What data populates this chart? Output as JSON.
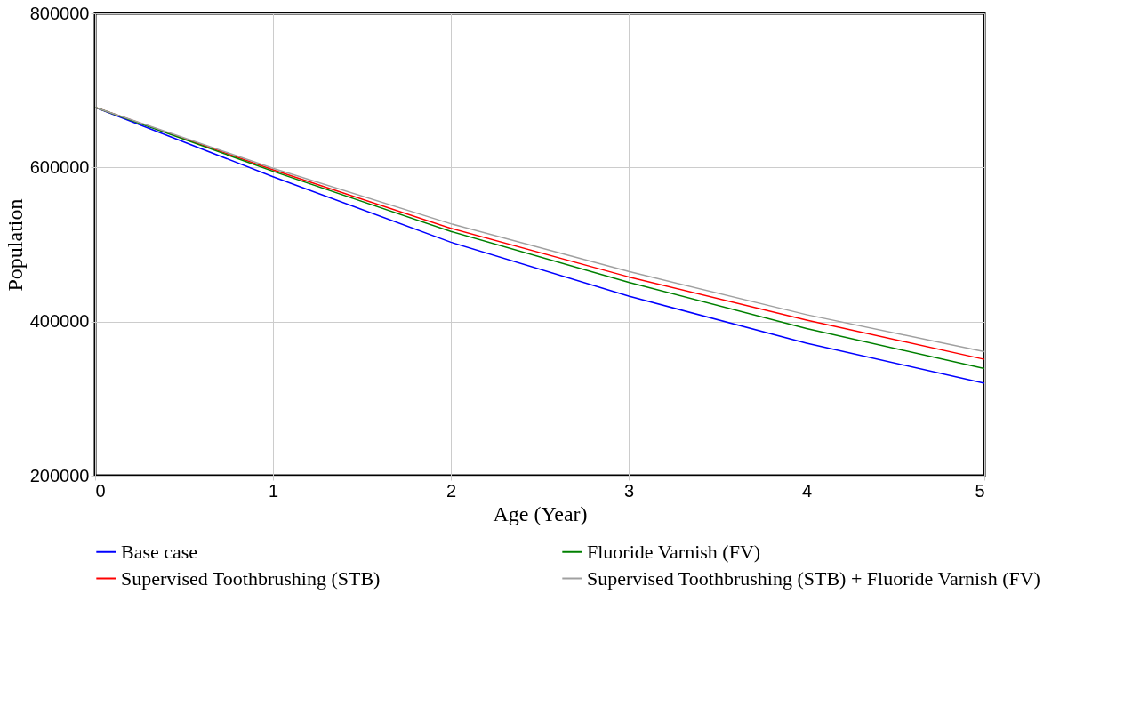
{
  "chart_data": {
    "type": "line",
    "xlabel": "Age (Year)",
    "ylabel": "Population",
    "x": [
      0,
      1,
      2,
      3,
      4,
      5
    ],
    "series": [
      {
        "name": "Base case",
        "color": "#0000ff",
        "values": [
          678000,
          588000,
          503000,
          433000,
          372000,
          320000
        ]
      },
      {
        "name": "Supervised Toothbrushing (STB)",
        "color": "#ff0000",
        "values": [
          678000,
          597000,
          521000,
          458000,
          402000,
          351000
        ]
      },
      {
        "name": "Fluoride Varnish (FV)",
        "color": "#008000",
        "values": [
          678000,
          595000,
          517000,
          451000,
          391000,
          339000
        ]
      },
      {
        "name": "Supervised Toothbrushing (STB) + Fluoride Varnish (FV)",
        "color": "#a0a0a0",
        "values": [
          678000,
          599000,
          527000,
          465000,
          409000,
          361000
        ]
      }
    ],
    "xlim": [
      0,
      5
    ],
    "xticks": [
      0,
      1,
      2,
      3,
      4,
      5
    ],
    "ylim": [
      200000,
      800000
    ],
    "yticks": [
      200000,
      400000,
      600000,
      800000
    ],
    "grid": true,
    "legend": "bottom",
    "marker": "none",
    "line_style": "solid"
  }
}
